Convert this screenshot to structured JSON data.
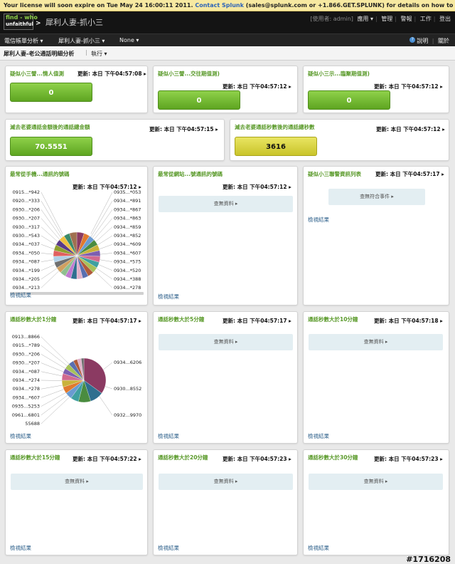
{
  "license": {
    "prefix": "Your license will soon expire on Tue May 24 16:00:11 2011.",
    "link": "Contact Splunk",
    "suffix": "(sales@splunk.com or +1.866.GET.SPLUNK) for details on how to renew."
  },
  "header": {
    "logo_line1": "find - who",
    "logo_line2": "unfaithful",
    "logo_arrow": ">",
    "app_title": "犀利人妻-抓小三",
    "user_label": "[使用者: admin]",
    "menu": [
      "應用 ▾",
      "管理",
      "警報",
      "工作",
      "登出"
    ]
  },
  "nav": {
    "items": [
      "電信帳單分析 ▾",
      "犀利人妻-抓小三 ▾",
      "None ▾"
    ],
    "help": "說明",
    "about": "關於",
    "help_icon": "help-icon"
  },
  "subbar": {
    "title": "犀利人妻-老公通話明細分析",
    "run": "執行 ▾"
  },
  "panels": [
    {
      "title": "疑似小三譬...情人值測",
      "updated_label": "更新:",
      "updated": "本日 下午04:57:08 ▸",
      "value": "0"
    },
    {
      "title": "疑似小三譬...交往期值測)",
      "updated_label": "更新:",
      "updated": "本日 下午04:57:12 ▸",
      "value": "0"
    },
    {
      "title": "疑似小三示...臨聚期值測)",
      "updated_label": "更新:",
      "updated": "本日 下午04:57:12 ▸",
      "value": "0"
    },
    {
      "title": "減去老婆通話金額後的通話總金額",
      "updated_label": "更新:",
      "updated": "本日 下午04:57:15 ▸",
      "value": "70.5551"
    },
    {
      "title": "減去老婆通話秒數後的通話總秒數",
      "updated_label": "更新:",
      "updated": "本日 下午04:57:12 ▸",
      "value": "3616"
    },
    {
      "title": "最常從手機...通訊的號碼",
      "updated_label": "更新:",
      "updated": "本日 下午04:57:12 ▸",
      "view": "檢視結果"
    },
    {
      "title": "最常從網站...號通訊的號碼",
      "updated_label": "更新:",
      "updated": "本日 下午04:57:12 ▸",
      "nores": "查無資料 ▸",
      "view": "檢視結果"
    },
    {
      "title": "疑似小三聯警資訊列表",
      "updated_label": "更新:",
      "updated": "本日 下午04:57:17 ▸",
      "nores": "查無符合事件 ▸",
      "view": "檢視結果"
    },
    {
      "title": "通話秒數大於1分鐘",
      "updated_label": "更新:",
      "updated": "本日 下午04:57:17 ▸",
      "view": "檢視結果"
    },
    {
      "title": "通話秒數大於5分鐘",
      "updated_label": "更新:",
      "updated": "本日 下午04:57:17 ▸",
      "nores": "查無資料 ▸",
      "view": "檢視結果"
    },
    {
      "title": "通話秒數大於10分鐘",
      "updated_label": "更新:",
      "updated": "本日 下午04:57:18 ▸",
      "nores": "查無資料 ▸",
      "view": "檢視結果"
    },
    {
      "title": "通話秒數大於15分鐘",
      "updated_label": "更新:",
      "updated": "本日 下午04:57:22 ▸",
      "nores": "查無資料 ▸",
      "view": "檢視結果"
    },
    {
      "title": "通話秒數大於20分鐘",
      "updated_label": "更新:",
      "updated": "本日 下午04:57:23 ▸",
      "nores": "查無資料 ▸",
      "view": "檢視結果"
    },
    {
      "title": "通話秒數大於30分鐘",
      "updated_label": "更新:",
      "updated": "本日 下午04:57:23 ▸",
      "nores": "查無資料 ▸",
      "view": "檢視結果"
    }
  ],
  "pie1": {
    "left_labels": [
      "0915...*942",
      "0920...*333",
      "0930...*206",
      "0930...*207",
      "0930...*317",
      "0930...*543",
      "0934...*037",
      "0934...*050",
      "0934...*087",
      "0934...*199",
      "0934...*205",
      "0934...*213"
    ],
    "right_labels": [
      "0935...*053",
      "0934...*891",
      "0934...*867",
      "0934...*863",
      "0934...*859",
      "0934...*852",
      "0934...*609",
      "0934...*607",
      "0934...*575",
      "0934...*520",
      "0934...*388",
      "0934...*278"
    ],
    "colors": [
      "#8b3a62",
      "#e07a2e",
      "#6a9bd1",
      "#4a8c3f",
      "#c9b23a",
      "#7d5fb0",
      "#d16a8e",
      "#3fa0a0",
      "#a6c15a",
      "#b05a3a",
      "#5a6fb0",
      "#e0b0c8",
      "#2f6f8f",
      "#c07ad0",
      "#8fbf8f",
      "#d0a060",
      "#6f6f6f",
      "#b0d0e8",
      "#e06060",
      "#90a030",
      "#5a3a8a",
      "#f0c040",
      "#3a8a6a",
      "#a07050"
    ],
    "values": [
      5,
      4,
      4,
      4,
      4,
      4,
      4,
      4,
      4,
      4,
      4,
      4,
      4,
      4,
      4,
      4,
      4,
      4,
      4,
      4,
      4,
      4,
      4,
      5
    ]
  },
  "pie2": {
    "left_labels": [
      "0913...8866",
      "0915...*789",
      "0930...*206",
      "0930...*207",
      "0934...*087",
      "0934...*274",
      "0934...*278",
      "0934...*607",
      "0935...5253",
      "0961...6801",
      "55688"
    ],
    "right_labels": [
      "0934...6206",
      "0930...8552",
      "0932...9970"
    ],
    "colors": [
      "#8b3a62",
      "#2f6f8f",
      "#4a8c3f",
      "#3fa0a0",
      "#6a9bd1",
      "#e07a2e",
      "#c9b23a",
      "#d16a8e",
      "#7d5fb0",
      "#a6c15a",
      "#5a6fb0",
      "#b05a3a",
      "#e0b0c8",
      "#6f6f6f"
    ],
    "values": [
      35,
      10,
      9,
      6,
      5,
      5,
      5,
      5,
      4,
      4,
      4,
      3,
      3,
      2
    ]
  },
  "watermark": "#1716208"
}
